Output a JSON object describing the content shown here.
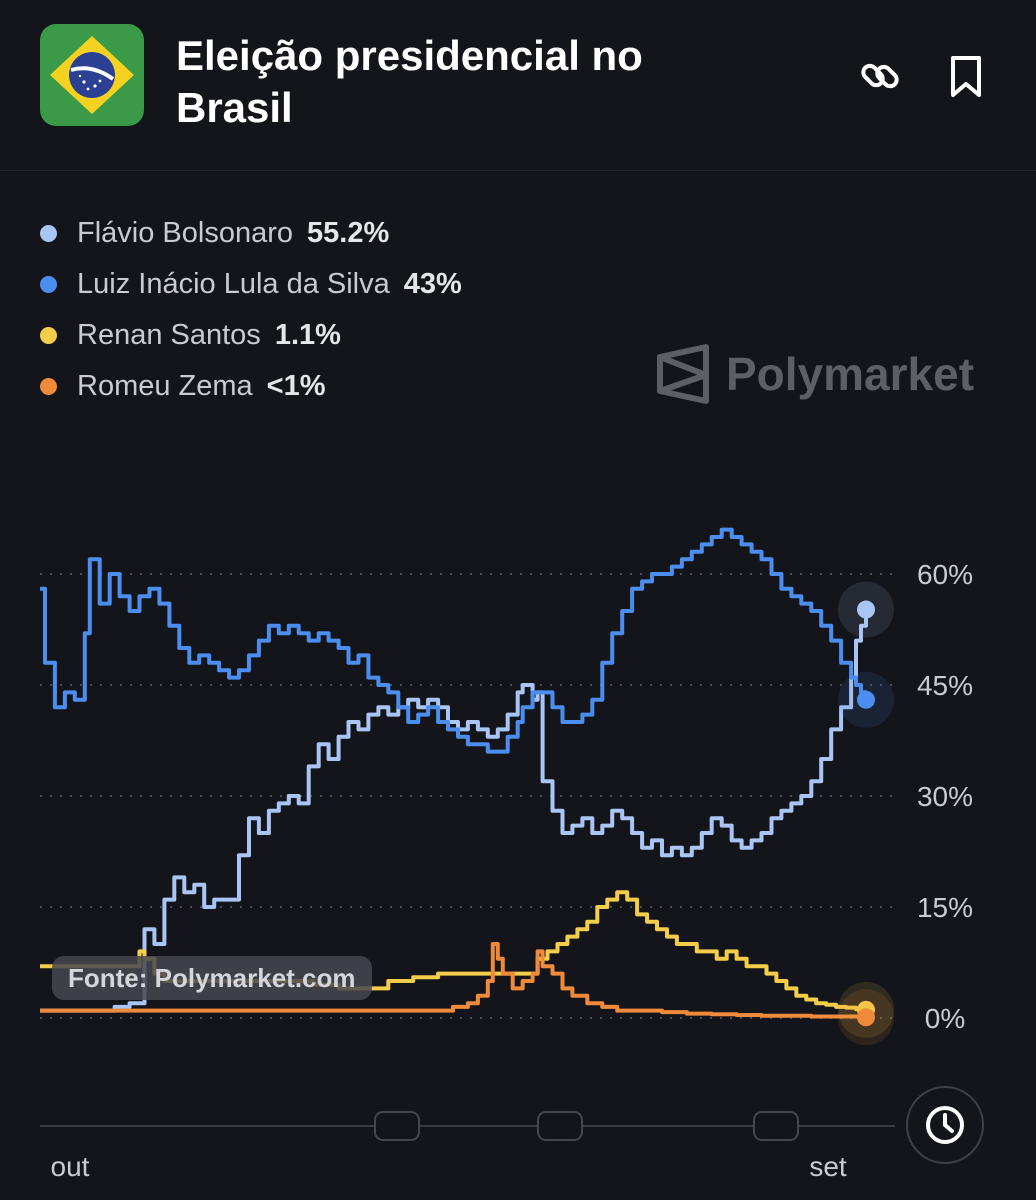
{
  "header": {
    "title": "Eleição presidencial no Brasil",
    "icons": {
      "flag": "brazil-flag",
      "link": "link-icon",
      "bookmark": "bookmark-icon"
    }
  },
  "legend": [
    {
      "name": "Flávio Bolsonaro",
      "value": "55.2%",
      "color": "#a9c5f5"
    },
    {
      "name": "Luiz Inácio Lula da Silva",
      "value": "43%",
      "color": "#4c8ef0"
    },
    {
      "name": "Renan Santos",
      "value": "1.1%",
      "color": "#f4ce4a"
    },
    {
      "name": "Romeu Zema",
      "value": "<1%",
      "color": "#ef8a3a"
    }
  ],
  "watermark": "Polymarket",
  "source": "Fonte: Polymarket.com",
  "chart_data": {
    "type": "line",
    "y_ticks": [
      "60%",
      "45%",
      "30%",
      "15%",
      "0%"
    ],
    "x_ticks": [
      "out",
      "set"
    ],
    "ylim": [
      0,
      70
    ],
    "grid": true,
    "series": [
      {
        "name": "Flávio Bolsonaro",
        "color": "#a9c5f5",
        "points": [
          [
            0,
            1
          ],
          [
            8,
            1
          ],
          [
            15,
            1.5
          ],
          [
            18,
            2
          ],
          [
            21,
            12
          ],
          [
            23,
            10
          ],
          [
            25,
            16
          ],
          [
            27,
            19
          ],
          [
            29,
            17
          ],
          [
            31,
            18
          ],
          [
            33,
            15
          ],
          [
            35,
            16
          ],
          [
            38,
            16
          ],
          [
            40,
            22
          ],
          [
            42,
            27
          ],
          [
            44,
            25
          ],
          [
            46,
            28
          ],
          [
            48,
            29
          ],
          [
            50,
            30
          ],
          [
            52,
            29
          ],
          [
            54,
            34
          ],
          [
            56,
            37
          ],
          [
            58,
            35
          ],
          [
            60,
            38
          ],
          [
            62,
            40
          ],
          [
            64,
            39
          ],
          [
            66,
            41
          ],
          [
            68,
            42
          ],
          [
            70,
            41
          ],
          [
            72,
            42
          ],
          [
            74,
            43
          ],
          [
            76,
            42
          ],
          [
            78,
            43
          ],
          [
            80,
            42
          ],
          [
            82,
            40
          ],
          [
            84,
            39
          ],
          [
            86,
            40
          ],
          [
            88,
            39
          ],
          [
            90,
            38
          ],
          [
            92,
            39
          ],
          [
            94,
            41
          ],
          [
            96,
            44
          ],
          [
            97,
            45
          ],
          [
            99,
            43
          ],
          [
            100,
            44
          ],
          [
            101,
            32
          ],
          [
            103,
            28
          ],
          [
            105,
            25
          ],
          [
            107,
            26
          ],
          [
            109,
            27
          ],
          [
            111,
            25
          ],
          [
            113,
            26
          ],
          [
            115,
            28
          ],
          [
            117,
            27
          ],
          [
            119,
            25
          ],
          [
            121,
            23
          ],
          [
            123,
            24
          ],
          [
            125,
            22
          ],
          [
            127,
            23
          ],
          [
            129,
            22
          ],
          [
            131,
            23
          ],
          [
            133,
            25
          ],
          [
            135,
            27
          ],
          [
            137,
            26
          ],
          [
            139,
            24
          ],
          [
            141,
            23
          ],
          [
            143,
            24
          ],
          [
            145,
            25
          ],
          [
            147,
            27
          ],
          [
            149,
            28
          ],
          [
            151,
            29
          ],
          [
            153,
            30
          ],
          [
            155,
            32
          ],
          [
            157,
            35
          ],
          [
            159,
            39
          ],
          [
            161,
            42
          ],
          [
            163,
            46
          ],
          [
            164,
            51
          ],
          [
            165,
            53
          ],
          [
            166,
            55.2
          ]
        ]
      },
      {
        "name": "Luiz Inácio Lula da Silva",
        "color": "#4c8ef0",
        "points": [
          [
            0,
            58
          ],
          [
            1,
            48
          ],
          [
            3,
            42
          ],
          [
            5,
            44
          ],
          [
            7,
            43
          ],
          [
            9,
            52
          ],
          [
            10,
            62
          ],
          [
            12,
            56
          ],
          [
            14,
            60
          ],
          [
            16,
            57
          ],
          [
            18,
            55
          ],
          [
            20,
            57
          ],
          [
            22,
            58
          ],
          [
            24,
            56
          ],
          [
            26,
            53
          ],
          [
            28,
            50
          ],
          [
            30,
            48
          ],
          [
            32,
            49
          ],
          [
            34,
            48
          ],
          [
            36,
            47
          ],
          [
            38,
            46
          ],
          [
            40,
            47
          ],
          [
            42,
            49
          ],
          [
            44,
            51
          ],
          [
            46,
            53
          ],
          [
            48,
            52
          ],
          [
            50,
            53
          ],
          [
            52,
            52
          ],
          [
            54,
            51
          ],
          [
            56,
            52
          ],
          [
            58,
            51
          ],
          [
            60,
            50
          ],
          [
            62,
            48
          ],
          [
            64,
            49
          ],
          [
            66,
            46
          ],
          [
            68,
            45
          ],
          [
            70,
            44
          ],
          [
            72,
            42
          ],
          [
            74,
            40
          ],
          [
            76,
            41
          ],
          [
            78,
            42
          ],
          [
            80,
            40
          ],
          [
            82,
            39
          ],
          [
            84,
            38
          ],
          [
            86,
            37
          ],
          [
            88,
            37
          ],
          [
            90,
            36
          ],
          [
            92,
            36
          ],
          [
            94,
            38
          ],
          [
            96,
            40
          ],
          [
            97,
            42
          ],
          [
            99,
            44
          ],
          [
            101,
            44
          ],
          [
            103,
            42
          ],
          [
            105,
            40
          ],
          [
            107,
            40
          ],
          [
            109,
            41
          ],
          [
            111,
            43
          ],
          [
            113,
            48
          ],
          [
            115,
            52
          ],
          [
            117,
            55
          ],
          [
            119,
            58
          ],
          [
            121,
            59
          ],
          [
            123,
            60
          ],
          [
            125,
            60
          ],
          [
            127,
            61
          ],
          [
            129,
            62
          ],
          [
            131,
            63
          ],
          [
            133,
            64
          ],
          [
            135,
            65
          ],
          [
            137,
            66
          ],
          [
            139,
            65
          ],
          [
            141,
            64
          ],
          [
            143,
            63
          ],
          [
            145,
            62
          ],
          [
            147,
            60
          ],
          [
            149,
            58
          ],
          [
            151,
            57
          ],
          [
            153,
            56
          ],
          [
            155,
            55
          ],
          [
            157,
            53
          ],
          [
            159,
            51
          ],
          [
            161,
            48
          ],
          [
            163,
            46
          ],
          [
            164,
            45
          ],
          [
            165,
            44
          ],
          [
            166,
            43
          ]
        ]
      },
      {
        "name": "Renan Santos",
        "color": "#f4ce4a",
        "points": [
          [
            0,
            7
          ],
          [
            10,
            7
          ],
          [
            19,
            7
          ],
          [
            20,
            9
          ],
          [
            21,
            8
          ],
          [
            23,
            6
          ],
          [
            25,
            5
          ],
          [
            27,
            5
          ],
          [
            30,
            5
          ],
          [
            33,
            5
          ],
          [
            36,
            5
          ],
          [
            40,
            5
          ],
          [
            45,
            5
          ],
          [
            50,
            5
          ],
          [
            55,
            4.5
          ],
          [
            60,
            4
          ],
          [
            65,
            4
          ],
          [
            70,
            5
          ],
          [
            75,
            5.5
          ],
          [
            80,
            6
          ],
          [
            85,
            6
          ],
          [
            90,
            6
          ],
          [
            95,
            6
          ],
          [
            98,
            6
          ],
          [
            100,
            8
          ],
          [
            102,
            9
          ],
          [
            104,
            10
          ],
          [
            106,
            11
          ],
          [
            108,
            12
          ],
          [
            110,
            13
          ],
          [
            112,
            15
          ],
          [
            114,
            16
          ],
          [
            116,
            17
          ],
          [
            118,
            16
          ],
          [
            120,
            14
          ],
          [
            122,
            13
          ],
          [
            124,
            12
          ],
          [
            126,
            11
          ],
          [
            128,
            10
          ],
          [
            130,
            10
          ],
          [
            132,
            9
          ],
          [
            134,
            9
          ],
          [
            136,
            8
          ],
          [
            138,
            9
          ],
          [
            140,
            8
          ],
          [
            142,
            7
          ],
          [
            144,
            7
          ],
          [
            146,
            6
          ],
          [
            148,
            5
          ],
          [
            150,
            4
          ],
          [
            152,
            3
          ],
          [
            154,
            2.5
          ],
          [
            156,
            2
          ],
          [
            158,
            1.8
          ],
          [
            160,
            1.5
          ],
          [
            162,
            1.4
          ],
          [
            164,
            1.2
          ],
          [
            166,
            1.1
          ]
        ]
      },
      {
        "name": "Romeu Zema",
        "color": "#ef8a3a",
        "points": [
          [
            0,
            1
          ],
          [
            10,
            1
          ],
          [
            20,
            1
          ],
          [
            30,
            1
          ],
          [
            40,
            1
          ],
          [
            50,
            1
          ],
          [
            60,
            1
          ],
          [
            70,
            1
          ],
          [
            80,
            1
          ],
          [
            83,
            1.5
          ],
          [
            86,
            2
          ],
          [
            88,
            3
          ],
          [
            90,
            5
          ],
          [
            91,
            10
          ],
          [
            92,
            8
          ],
          [
            93,
            6
          ],
          [
            95,
            4
          ],
          [
            97,
            5
          ],
          [
            99,
            6
          ],
          [
            100,
            9
          ],
          [
            101,
            7
          ],
          [
            103,
            6
          ],
          [
            105,
            4
          ],
          [
            107,
            3
          ],
          [
            110,
            2
          ],
          [
            113,
            1.5
          ],
          [
            116,
            1
          ],
          [
            120,
            1
          ],
          [
            125,
            0.8
          ],
          [
            130,
            0.6
          ],
          [
            135,
            0.5
          ],
          [
            140,
            0.4
          ],
          [
            145,
            0.3
          ],
          [
            150,
            0.3
          ],
          [
            155,
            0.2
          ],
          [
            160,
            0.2
          ],
          [
            166,
            0.1
          ]
        ]
      }
    ]
  }
}
